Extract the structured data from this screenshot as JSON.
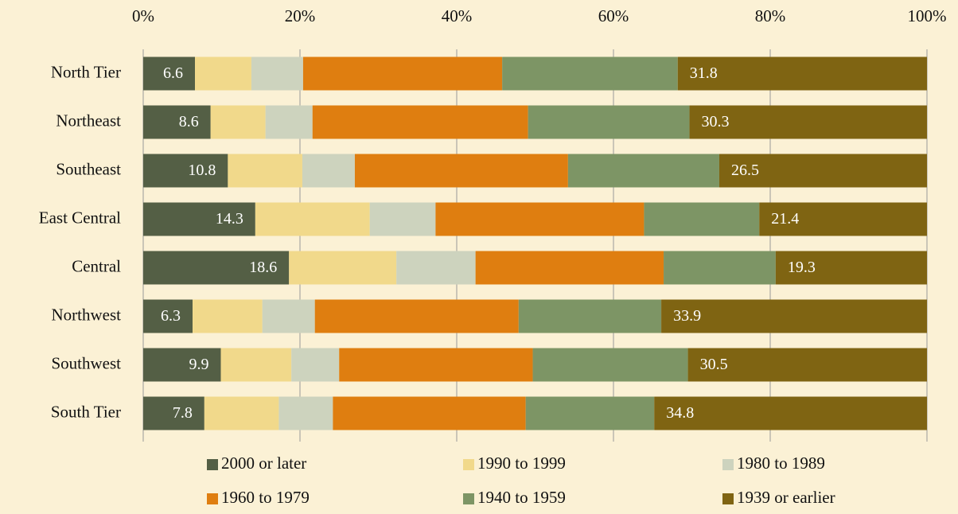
{
  "chart_data": {
    "type": "stacked_bar_horizontal",
    "categories": [
      "North Tier",
      "Northeast",
      "Southeast",
      "East Central",
      "Central",
      "Northwest",
      "Southwest",
      "South Tier"
    ],
    "series": [
      {
        "name": "2000 or later",
        "color": "#545f45",
        "show_labels": true,
        "values": [
          6.6,
          8.6,
          10.8,
          14.3,
          18.6,
          6.3,
          9.9,
          7.8
        ]
      },
      {
        "name": "1990 to 1999",
        "color": "#f1d98b",
        "show_labels": false,
        "values": [
          7.2,
          7.0,
          9.5,
          14.6,
          13.7,
          8.9,
          9.0,
          9.5
        ]
      },
      {
        "name": "1980 to 1989",
        "color": "#cdd3be",
        "show_labels": false,
        "values": [
          6.6,
          6.0,
          6.7,
          8.4,
          10.1,
          6.7,
          6.1,
          6.9
        ]
      },
      {
        "name": "1960 to 1979",
        "color": "#df7e10",
        "show_labels": false,
        "values": [
          25.4,
          27.5,
          27.2,
          26.6,
          24.0,
          26.0,
          24.7,
          24.6
        ]
      },
      {
        "name": "1940 to 1959",
        "color": "#7d9565",
        "show_labels": false,
        "values": [
          22.4,
          20.6,
          19.3,
          14.7,
          14.3,
          18.2,
          19.8,
          16.4
        ]
      },
      {
        "name": "1939 or earlier",
        "color": "#7f6412",
        "show_labels": true,
        "values": [
          31.8,
          30.3,
          26.5,
          21.4,
          19.3,
          33.9,
          30.5,
          34.8
        ]
      }
    ],
    "xlim": [
      0,
      100
    ],
    "xticks": [
      {
        "value": 0,
        "label": "0%"
      },
      {
        "value": 20,
        "label": "20%"
      },
      {
        "value": 40,
        "label": "40%"
      },
      {
        "value": 60,
        "label": "60%"
      },
      {
        "value": 80,
        "label": "80%"
      },
      {
        "value": 100,
        "label": "100%"
      }
    ],
    "grid": true,
    "legend": "bottom"
  }
}
